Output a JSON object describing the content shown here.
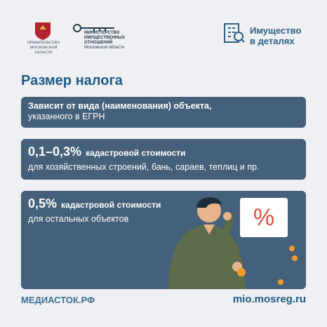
{
  "header": {
    "government": [
      "ПРАВИТЕЛЬСТВО",
      "МОСКОВСКОЙ",
      "ОБЛАСТИ"
    ],
    "ministry": [
      "МИНИСТЕРСТВО",
      "ИМУЩЕСТВЕННЫХ",
      "ОТНОШЕНИЙ",
      "Московской области"
    ],
    "badge": [
      "Имущество",
      "в деталях"
    ]
  },
  "title": "Размер налога",
  "cards": [
    {
      "lines": [
        "Зависит от вида (наименования) объекта,",
        "указанного в ЕГРН"
      ]
    },
    {
      "rate": "0,1–0,3%",
      "rate_note": "кадастровой стоимости",
      "description": "для хозяйственных строений, бань, сараев, теплиц и пр."
    },
    {
      "rate": "0,5%",
      "rate_note": "кадастровой стоимости",
      "description": "для остальных объектов"
    }
  ],
  "illustration": {
    "sign": "%"
  },
  "footer": {
    "left": "МЕДИАСТОК.РФ",
    "right": "mio.mosreg.ru"
  }
}
